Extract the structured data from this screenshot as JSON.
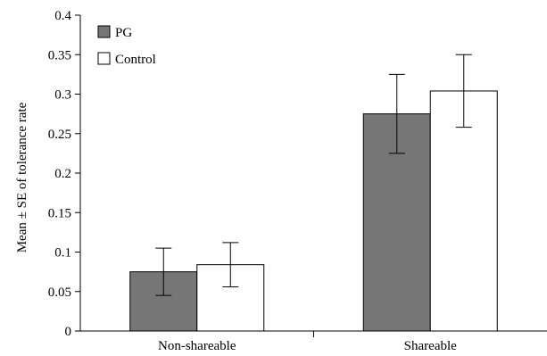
{
  "chart_data": {
    "type": "bar",
    "title": "",
    "xlabel": "",
    "ylabel": "Mean ± SE of tolerance rate",
    "ylim": [
      0,
      0.4
    ],
    "yticks": [
      "0",
      "0.05",
      "0.1",
      "0.15",
      "0.2",
      "0.25",
      "0.3",
      "0.35",
      "0.4"
    ],
    "categories": [
      "Non-shareable",
      "Shareable"
    ],
    "series": [
      {
        "name": "PG",
        "color": "#767676",
        "values": [
          0.075,
          0.275
        ],
        "errors": [
          0.03,
          0.05
        ]
      },
      {
        "name": "Control",
        "color": "#ffffff",
        "values": [
          0.084,
          0.304
        ],
        "errors": [
          0.028,
          0.046
        ]
      }
    ],
    "legend_position": "top-left",
    "grid": false
  }
}
